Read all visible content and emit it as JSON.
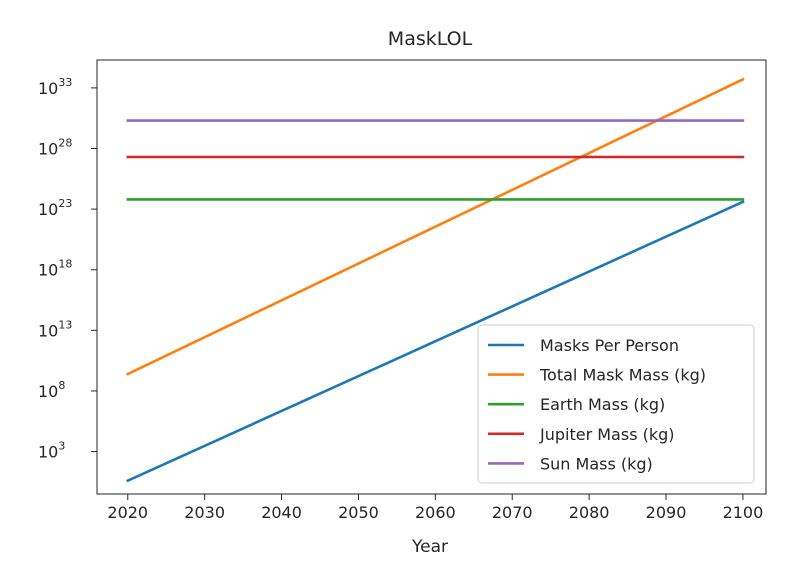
{
  "chart_data": {
    "type": "line",
    "title": "MaskLOL",
    "xlabel": "Year",
    "ylabel": "",
    "yscale": "log",
    "xlim": [
      2016,
      2103
    ],
    "ylim_exponents": [
      -0.5,
      35.3
    ],
    "x_ticks": [
      "2020",
      "2030",
      "2040",
      "2050",
      "2060",
      "2070",
      "2080",
      "2090",
      "2100"
    ],
    "y_ticks": [
      {
        "base": "10",
        "exp": "3"
      },
      {
        "base": "10",
        "exp": "8"
      },
      {
        "base": "10",
        "exp": "13"
      },
      {
        "base": "10",
        "exp": "18"
      },
      {
        "base": "10",
        "exp": "23"
      },
      {
        "base": "10",
        "exp": "28"
      },
      {
        "base": "10",
        "exp": "33"
      }
    ],
    "grid": false,
    "legend_position": "lower-right",
    "series": [
      {
        "name": "Masks Per Person",
        "color": "#1f77b4",
        "x": [
          2020,
          2100
        ],
        "y_log10": [
          0.6,
          23.6
        ]
      },
      {
        "name": "Total Mask Mass (kg)",
        "color": "#ff7f0e",
        "x": [
          2020,
          2100
        ],
        "y_log10": [
          9.4,
          33.7
        ]
      },
      {
        "name": "Earth Mass (kg)",
        "color": "#2ca02c",
        "x": [
          2020,
          2100
        ],
        "y_log10": [
          23.8,
          23.8
        ]
      },
      {
        "name": "Jupiter Mass (kg)",
        "color": "#d62728",
        "x": [
          2020,
          2100
        ],
        "y_log10": [
          27.3,
          27.3
        ]
      },
      {
        "name": "Sun Mass (kg)",
        "color": "#9467bd",
        "x": [
          2020,
          2100
        ],
        "y_log10": [
          30.3,
          30.3
        ]
      }
    ]
  }
}
